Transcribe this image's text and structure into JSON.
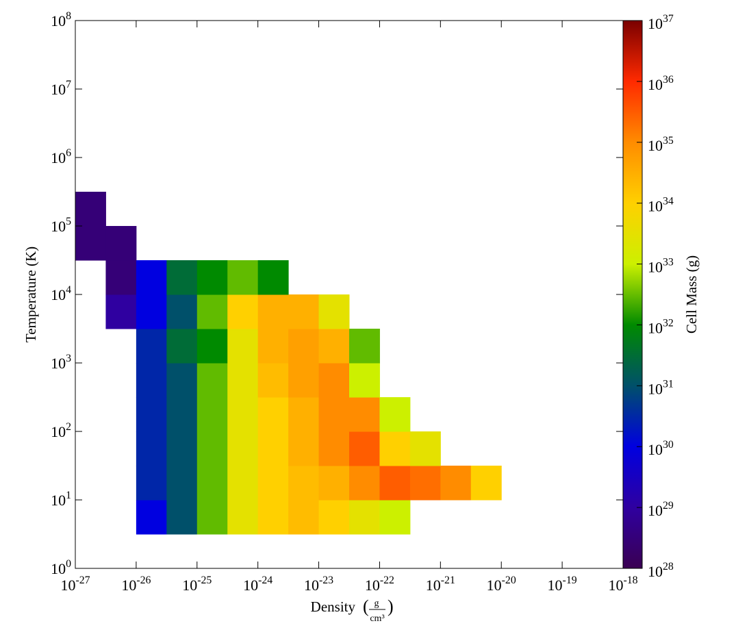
{
  "chart_data": {
    "type": "heatmap",
    "xlabel": "Density",
    "xunit": {
      "numerator": "g",
      "denominator": "cm³"
    },
    "ylabel": "Temperature  (K)",
    "colorbar_label": "Cell Mass  (g)",
    "xlog": true,
    "ylog": true,
    "zlog": true,
    "xlim": [
      1e-27,
      1e-18
    ],
    "ylim": [
      1,
      100000000.0
    ],
    "zlim": [
      1e+28,
      1e+37
    ],
    "xticks": [
      {
        "value": 1e-27,
        "label": "10^-27"
      },
      {
        "value": 1e-26,
        "label": "10^-26"
      },
      {
        "value": 1e-25,
        "label": "10^-25"
      },
      {
        "value": 1e-24,
        "label": "10^-24"
      },
      {
        "value": 1e-23,
        "label": "10^-23"
      },
      {
        "value": 1e-22,
        "label": "10^-22"
      },
      {
        "value": 1e-21,
        "label": "10^-21"
      },
      {
        "value": 1e-20,
        "label": "10^-20"
      },
      {
        "value": 1e-19,
        "label": "10^-19"
      },
      {
        "value": 1e-18,
        "label": "10^-18"
      }
    ],
    "yticks": [
      {
        "value": 1,
        "label": "10^0"
      },
      {
        "value": 10,
        "label": "10^1"
      },
      {
        "value": 100,
        "label": "10^2"
      },
      {
        "value": 1000,
        "label": "10^3"
      },
      {
        "value": 10000,
        "label": "10^4"
      },
      {
        "value": 100000,
        "label": "10^5"
      },
      {
        "value": 1000000,
        "label": "10^6"
      },
      {
        "value": 10000000,
        "label": "10^7"
      },
      {
        "value": 100000000,
        "label": "10^8"
      }
    ],
    "zticks": [
      {
        "value": 1e+28,
        "label": "10^28"
      },
      {
        "value": 1e+29,
        "label": "10^29"
      },
      {
        "value": 1e+30,
        "label": "10^30"
      },
      {
        "value": 1e+31,
        "label": "10^31"
      },
      {
        "value": 1e+32,
        "label": "10^32"
      },
      {
        "value": 1e+33,
        "label": "10^33"
      },
      {
        "value": 1e+34,
        "label": "10^34"
      },
      {
        "value": 1e+35,
        "label": "10^35"
      },
      {
        "value": 1e+36,
        "label": "10^36"
      },
      {
        "value": 1e+37,
        "label": "10^37"
      }
    ],
    "colormap": [
      "#3a0052",
      "#2f00a0",
      "#0000e0",
      "#00506a",
      "#008a00",
      "#ccf000",
      "#ffd000",
      "#ff8c00",
      "#ff2a00",
      "#7a0000"
    ],
    "xbins": [
      1e-27,
      3.162e-27,
      1e-26,
      3.162e-26,
      1e-25,
      3.162e-25,
      1e-24,
      3.162e-24,
      1e-23,
      3.162e-23,
      1e-22,
      3.162e-22,
      1e-21,
      3.162e-21,
      1e-20,
      3.162e-20
    ],
    "ybins": [
      3.162,
      10,
      31.62,
      100,
      316.2,
      1000,
      3162,
      10000,
      31620,
      100000,
      316200
    ],
    "z": [
      [
        null,
        null,
        1e+30,
        1e+31,
        3e+32,
        3e+33,
        1e+34,
        2e+34,
        1e+34,
        3e+33,
        1e+33,
        null,
        null,
        null,
        null
      ],
      [
        null,
        null,
        3e+30,
        1e+31,
        3e+32,
        3e+33,
        1e+34,
        2e+34,
        3e+34,
        1e+35,
        3e+35,
        2e+35,
        1e+35,
        1e+34,
        null
      ],
      [
        null,
        null,
        3e+30,
        1e+31,
        3e+32,
        3e+33,
        1e+34,
        3e+34,
        1e+35,
        3e+35,
        1e+34,
        3e+33,
        null,
        null,
        null
      ],
      [
        null,
        null,
        3e+30,
        1e+31,
        3e+32,
        3e+33,
        1e+34,
        3e+34,
        1e+35,
        1e+35,
        1e+33,
        null,
        null,
        null,
        null
      ],
      [
        null,
        null,
        3e+30,
        1e+31,
        3e+32,
        3e+33,
        2e+34,
        5e+34,
        1e+35,
        1e+33,
        null,
        null,
        null,
        null,
        null
      ],
      [
        null,
        null,
        3e+30,
        3e+31,
        1e+32,
        3e+33,
        3e+34,
        5e+34,
        3e+34,
        3e+32,
        null,
        null,
        null,
        null,
        null
      ],
      [
        null,
        1e+29,
        1e+30,
        1e+31,
        3e+32,
        1e+34,
        3e+34,
        3e+34,
        3e+33,
        null,
        null,
        null,
        null,
        null,
        null
      ],
      [
        null,
        3e+28,
        1e+30,
        3e+31,
        1e+32,
        3e+32,
        1e+32,
        null,
        null,
        null,
        null,
        null,
        null,
        null,
        null
      ],
      [
        3e+28,
        3e+28,
        null,
        null,
        null,
        null,
        null,
        null,
        null,
        null,
        null,
        null,
        null,
        null,
        null
      ],
      [
        3e+28,
        null,
        null,
        null,
        null,
        null,
        null,
        null,
        null,
        null,
        null,
        null,
        null,
        null,
        null
      ]
    ]
  }
}
